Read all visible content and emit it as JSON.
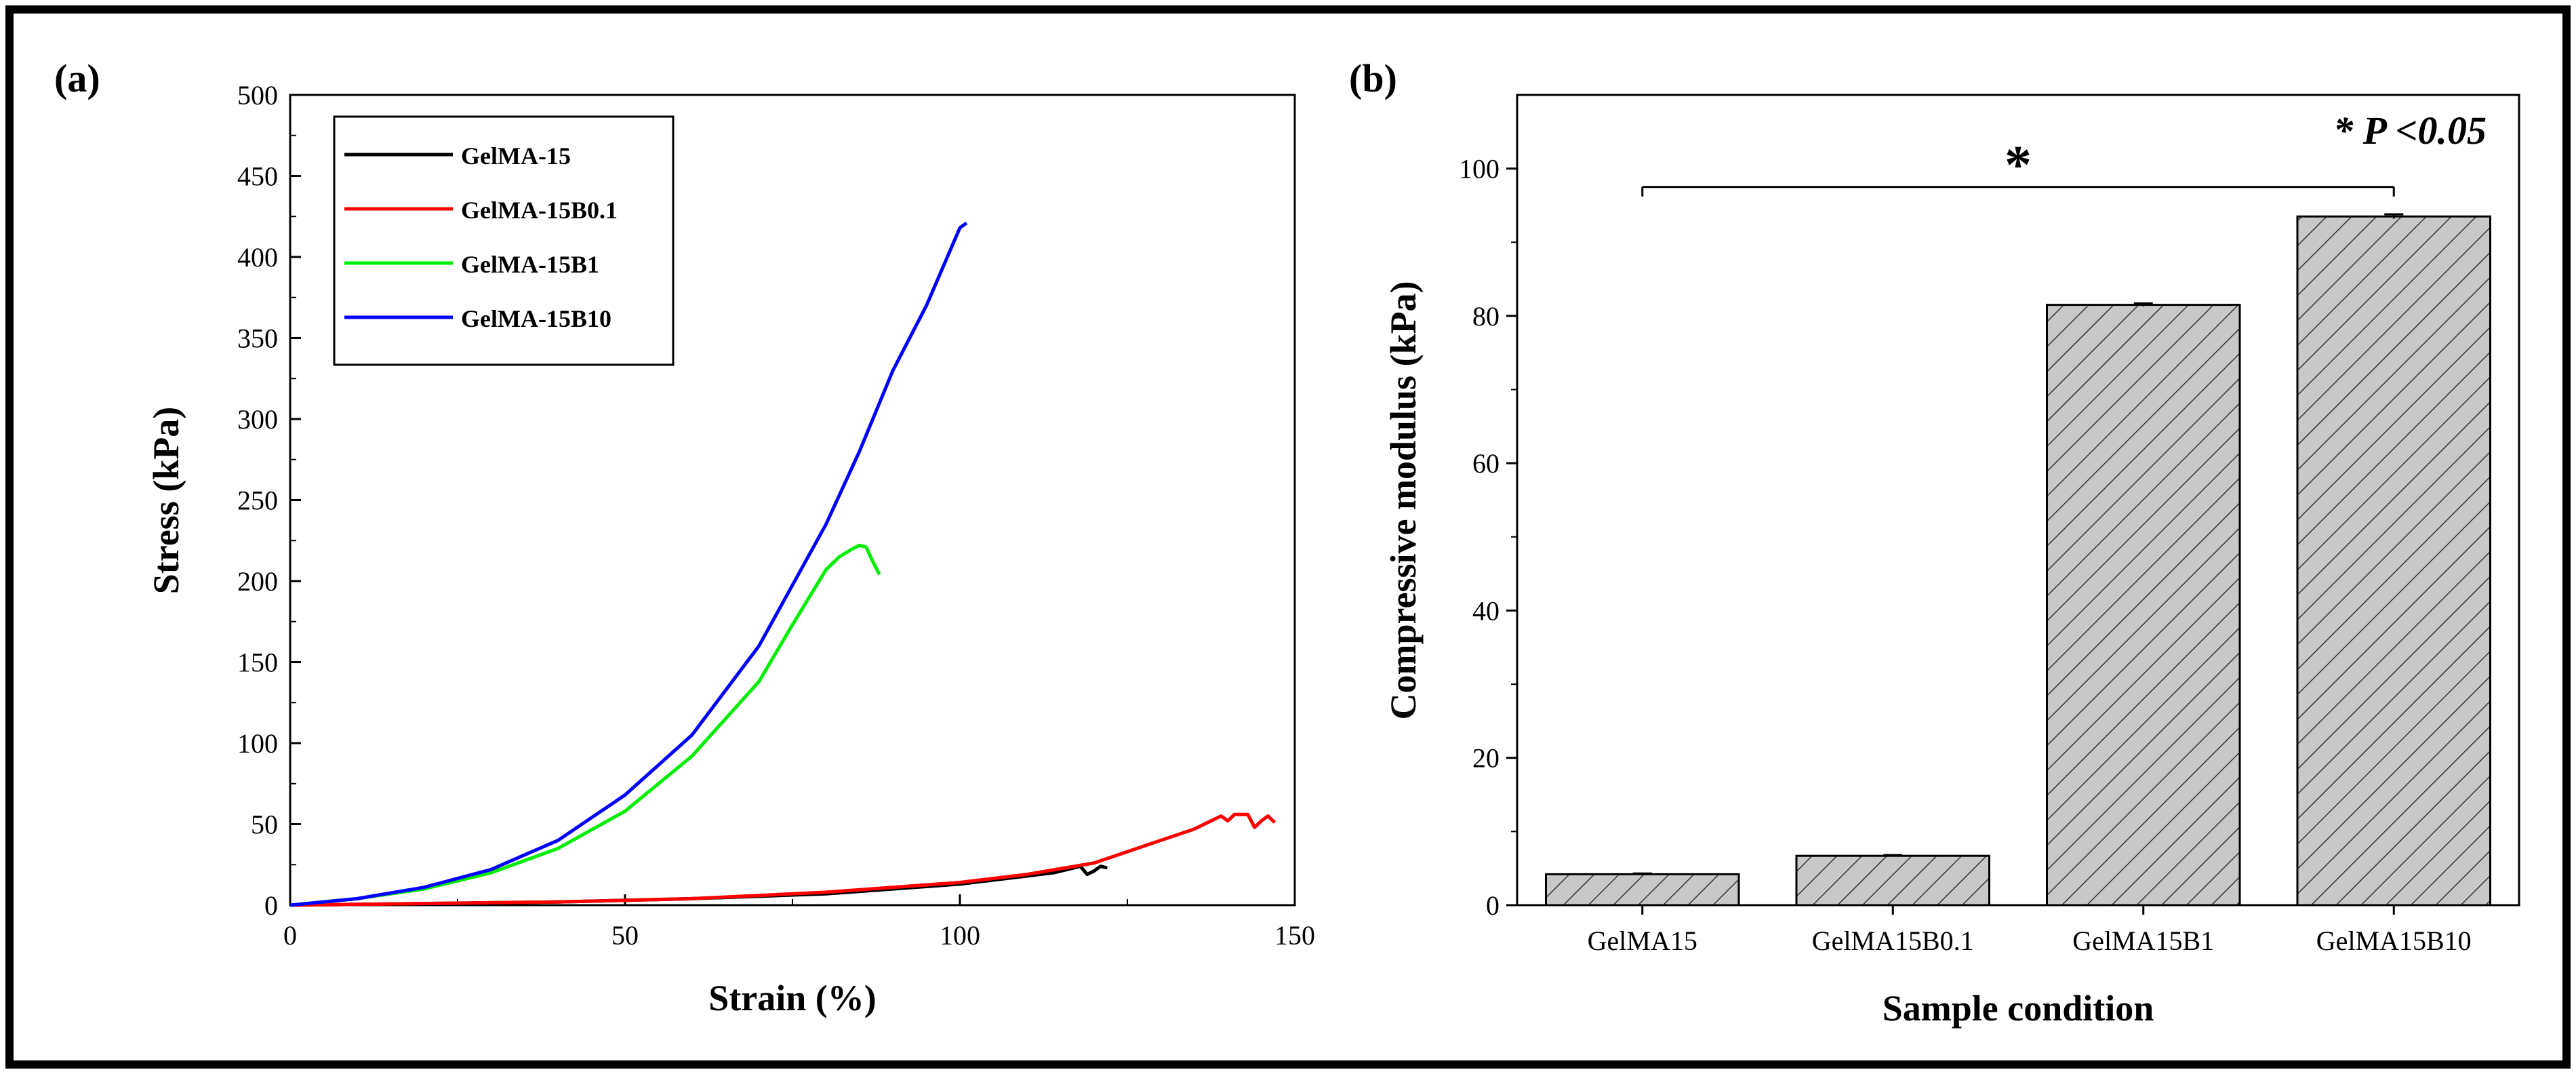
{
  "chart_data": [
    {
      "panel": "(a)",
      "type": "line",
      "title": "",
      "xlabel": "Strain (%)",
      "ylabel": "Stress (kPa)",
      "xlim": [
        0,
        150
      ],
      "ylim": [
        0,
        500
      ],
      "xticks": [
        0,
        50,
        100,
        150
      ],
      "yticks": [
        0,
        50,
        100,
        150,
        200,
        250,
        300,
        350,
        400,
        450,
        500
      ],
      "legend_position": "top-left",
      "series": [
        {
          "name": "GelMA-15",
          "color": "#000000",
          "x": [
            0,
            20,
            40,
            60,
            80,
            100,
            110,
            114,
            116,
            118,
            119,
            120,
            121,
            122
          ],
          "y": [
            0,
            1,
            2,
            4,
            7,
            13,
            18,
            20,
            22,
            24,
            19,
            21,
            24,
            23
          ]
        },
        {
          "name": "GelMA-15B0.1",
          "color": "#ff0000",
          "x": [
            0,
            20,
            40,
            60,
            80,
            100,
            110,
            120,
            125,
            130,
            135,
            139,
            140,
            141,
            143,
            144,
            145,
            146,
            147
          ],
          "y": [
            0,
            1,
            2,
            4,
            8,
            14,
            19,
            26,
            33,
            40,
            47,
            55,
            52,
            56,
            56,
            48,
            52,
            55,
            51
          ]
        },
        {
          "name": "GelMA-15B1",
          "color": "#00ee00",
          "x": [
            0,
            10,
            20,
            30,
            40,
            50,
            60,
            70,
            75,
            80,
            82,
            84,
            85,
            86,
            87,
            88
          ],
          "y": [
            0,
            4,
            10,
            20,
            35,
            58,
            92,
            138,
            173,
            207,
            215,
            220,
            222,
            221,
            212,
            204
          ]
        },
        {
          "name": "GelMA-15B10",
          "color": "#0000ff",
          "x": [
            0,
            10,
            20,
            30,
            40,
            50,
            60,
            70,
            80,
            85,
            90,
            95,
            100,
            101
          ],
          "y": [
            0,
            4,
            11,
            22,
            40,
            68,
            105,
            160,
            235,
            280,
            330,
            370,
            418,
            421
          ]
        }
      ]
    },
    {
      "panel": "(b)",
      "type": "bar",
      "title": "",
      "xlabel": "Sample condition",
      "ylabel": "Compressive modulus (kPa)",
      "ylim": [
        0,
        110
      ],
      "yticks": [
        0,
        20,
        40,
        60,
        80,
        100
      ],
      "categories": [
        "GelMA15",
        "GelMA15B0.1",
        "GelMA15B1",
        "GelMA15B10"
      ],
      "values": [
        4.2,
        6.7,
        81.5,
        93.5
      ],
      "errors": [
        0.1,
        0.1,
        0.2,
        0.3
      ],
      "bar_color": "#c8c8c8",
      "bar_pattern": "diagonal hatch",
      "significance": {
        "symbol": "*",
        "text": "* P <0.05",
        "from_category": "GelMA15",
        "to_category": "GelMA15B10",
        "level": 97.5
      }
    }
  ]
}
